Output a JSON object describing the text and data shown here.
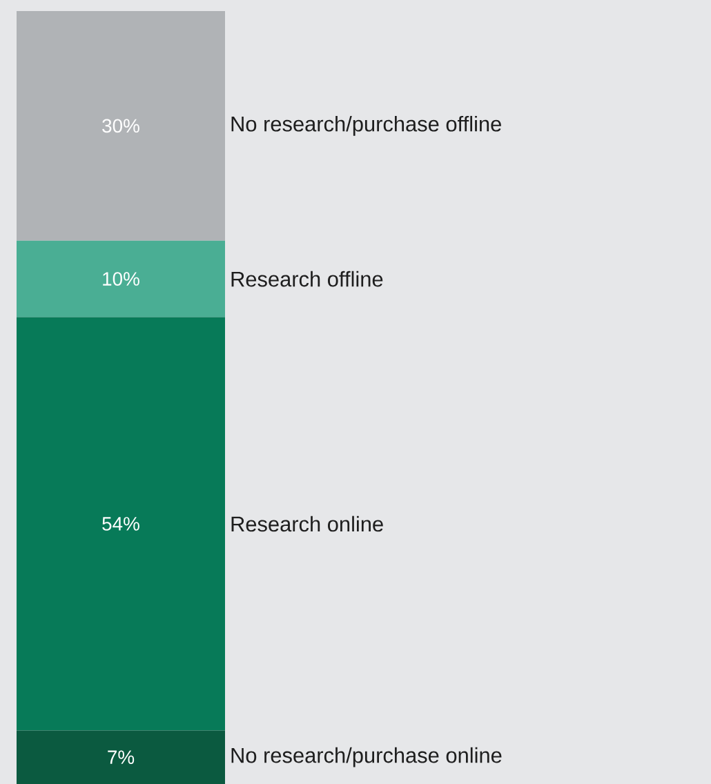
{
  "chart_data": {
    "type": "bar",
    "categories": [
      null
    ],
    "stacked": true,
    "series": [
      {
        "name": "No research/purchase online",
        "color": "#0b5a40",
        "values": [
          7
        ],
        "value_labels": [
          "7%"
        ]
      },
      {
        "name": "Research online",
        "color": "#077a58",
        "values": [
          54
        ],
        "value_labels": [
          "54%"
        ]
      },
      {
        "name": "Research offline",
        "color": "#4aae94",
        "values": [
          10
        ],
        "value_labels": [
          "10%"
        ]
      },
      {
        "name": "No research/purchase offline",
        "color": "#b0b3b6",
        "values": [
          30
        ],
        "value_labels": [
          "30%"
        ]
      }
    ]
  }
}
